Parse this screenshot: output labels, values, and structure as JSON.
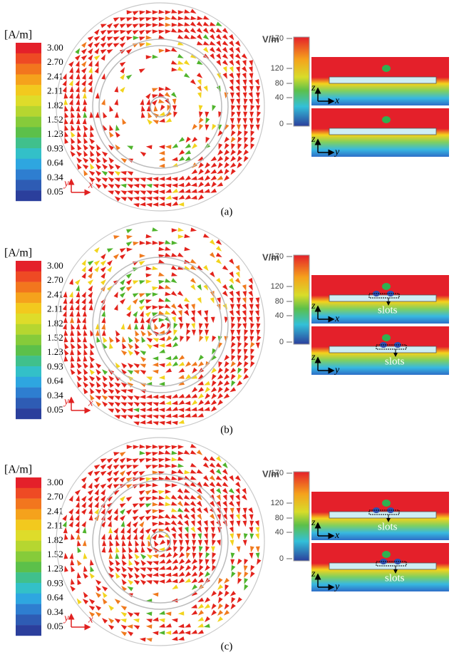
{
  "panels": [
    {
      "label": "(a)",
      "current_unit": "[A/m]",
      "current_ticks": [
        "3.00",
        "2.70",
        "2.41",
        "2.11",
        "1.82",
        "1.52",
        "1.23",
        "0.93",
        "0.64",
        "0.34",
        "0.05"
      ],
      "plane_axes": [
        "y",
        "x"
      ],
      "field_unit": "V/m",
      "field_ticks": [
        "170",
        "120",
        "80",
        "40",
        "0"
      ],
      "views": [
        {
          "axes": [
            "z",
            "x"
          ]
        },
        {
          "axes": [
            "z",
            "y"
          ]
        }
      ]
    },
    {
      "label": "(b)",
      "current_unit": "[A/m]",
      "current_ticks": [
        "3.00",
        "2.70",
        "2.41",
        "2.11",
        "1.82",
        "1.52",
        "1.23",
        "0.93",
        "0.64",
        "0.34",
        "0.05"
      ],
      "plane_axes": [
        "y",
        "x"
      ],
      "field_unit": "V/m",
      "field_ticks": [
        "170",
        "120",
        "80",
        "40",
        "0"
      ],
      "views": [
        {
          "axes": [
            "z",
            "x"
          ],
          "note": "slots"
        },
        {
          "axes": [
            "z",
            "y"
          ],
          "note": "slots"
        }
      ]
    },
    {
      "label": "(c)",
      "current_unit": "[A/m]",
      "current_ticks": [
        "3.00",
        "2.70",
        "2.41",
        "2.11",
        "1.82",
        "1.52",
        "1.23",
        "0.93",
        "0.64",
        "0.34",
        "0.05"
      ],
      "plane_axes": [
        "y",
        "x"
      ],
      "field_unit": "V/m",
      "field_ticks": [
        "170",
        "120",
        "80",
        "40",
        "0"
      ],
      "views": [
        {
          "axes": [
            "z",
            "x"
          ],
          "note": "slots"
        },
        {
          "axes": [
            "z",
            "y"
          ],
          "note": "slots"
        }
      ]
    }
  ]
}
